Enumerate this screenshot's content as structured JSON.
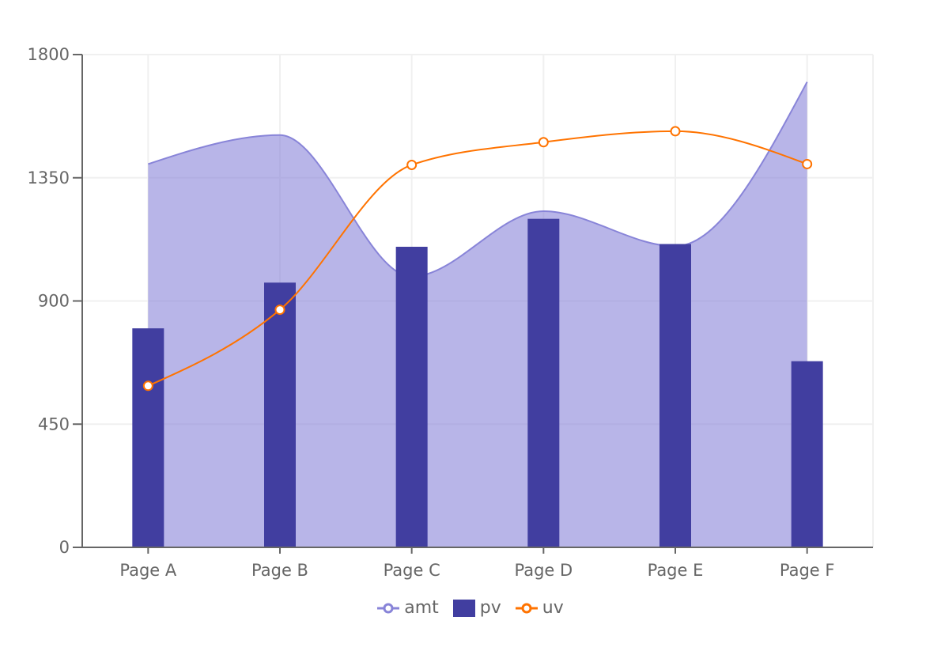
{
  "chart_data": {
    "type": "composed",
    "title": "",
    "xlabel": "",
    "ylabel": "",
    "categories": [
      "Page A",
      "Page B",
      "Page C",
      "Page D",
      "Page E",
      "Page F"
    ],
    "ylim": [
      0,
      1800
    ],
    "yticks": [
      0,
      450,
      900,
      1350,
      1800
    ],
    "grid": true,
    "legend_position": "bottom",
    "series": [
      {
        "name": "amt",
        "type": "area",
        "color": "#8884d8",
        "values": [
          1400,
          1506,
          989,
          1228,
          1100,
          1700
        ]
      },
      {
        "name": "pv",
        "type": "bar",
        "color": "#413ea0",
        "values": [
          800,
          967,
          1098,
          1200,
          1108,
          680
        ]
      },
      {
        "name": "uv",
        "type": "line",
        "color": "#ff7300",
        "values": [
          590,
          868,
          1397,
          1480,
          1520,
          1400
        ]
      }
    ]
  },
  "axis": {
    "y_labels": [
      "0",
      "450",
      "900",
      "1350",
      "1800"
    ],
    "x_labels": [
      "Page A",
      "Page B",
      "Page C",
      "Page D",
      "Page E",
      "Page F"
    ]
  },
  "legend": [
    {
      "label": "amt",
      "icon": "line-circle-icon",
      "color": "#8884d8"
    },
    {
      "label": "pv",
      "icon": "square-icon",
      "color": "#413ea0"
    },
    {
      "label": "uv",
      "icon": "line-circle-icon",
      "color": "#ff7300"
    }
  ]
}
